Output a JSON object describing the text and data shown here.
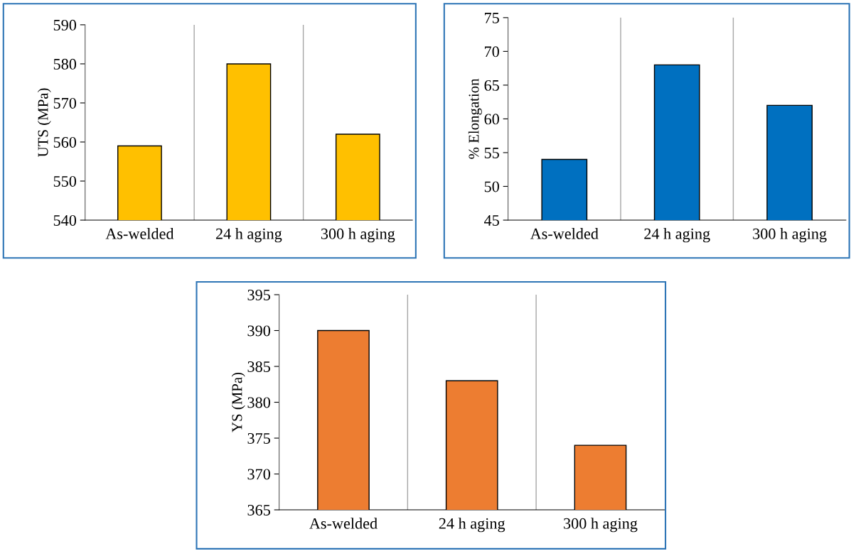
{
  "chart_data": [
    {
      "type": "bar",
      "ylabel": "UTS (MPa)",
      "categories": [
        "As-welded",
        "24 h aging",
        "300 h aging"
      ],
      "values": [
        559,
        580,
        562
      ],
      "color": "#ffc000",
      "ylim": [
        540,
        590
      ],
      "yticks": [
        540,
        550,
        560,
        570,
        580,
        590
      ],
      "grid": "x"
    },
    {
      "type": "bar",
      "ylabel": "% Elongation",
      "categories": [
        "As-welded",
        "24 h aging",
        "300 h aging"
      ],
      "values": [
        54,
        68,
        62
      ],
      "color": "#0070c0",
      "ylim": [
        45,
        75
      ],
      "yticks": [
        45,
        50,
        55,
        60,
        65,
        70,
        75
      ],
      "grid": "x"
    },
    {
      "type": "bar",
      "ylabel": "YS (MPa)",
      "categories": [
        "As-welded",
        "24 h aging",
        "300 h aging"
      ],
      "values": [
        390,
        383,
        374
      ],
      "color": "#ed7d31",
      "ylim": [
        365,
        395
      ],
      "yticks": [
        365,
        370,
        375,
        380,
        385,
        390,
        395
      ],
      "grid": "x"
    }
  ]
}
